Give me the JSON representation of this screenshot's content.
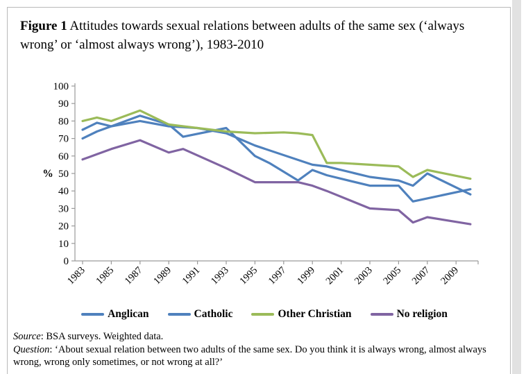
{
  "page": {
    "title_bold": "Figure 1",
    "title_rest": " Attitudes towards sexual relations between adults of the same sex (‘always wrong’ or ‘almost always wrong’), 1983-2010"
  },
  "chart_data": {
    "type": "line",
    "title": "Attitudes towards sexual relations between adults of the same sex (always wrong or almost always wrong), 1983-2010",
    "ylabel": "%",
    "xlabel": "",
    "ylim": [
      0,
      100
    ],
    "ytick_step": 10,
    "yticks": [
      0,
      10,
      20,
      30,
      40,
      50,
      60,
      70,
      80,
      90,
      100
    ],
    "xlim": [
      1983,
      2010
    ],
    "xtick_labels": [
      "1983",
      "1985",
      "1987",
      "1989",
      "1991",
      "1993",
      "1995",
      "1997",
      "1999",
      "2001",
      "2003",
      "2005",
      "2007",
      "2009"
    ],
    "grid": false,
    "legend_position": "bottom",
    "axis_color": "#9a9a9a",
    "series": [
      {
        "name": "Anglican",
        "color": "#4f81bd",
        "points": [
          [
            1983,
            75
          ],
          [
            1984,
            79
          ],
          [
            1985,
            77
          ],
          [
            1987,
            83
          ],
          [
            1989,
            78
          ],
          [
            1990,
            71
          ],
          [
            1993,
            76
          ],
          [
            1995,
            60
          ],
          [
            1996,
            56
          ],
          [
            1998,
            46
          ],
          [
            1999,
            52
          ],
          [
            2000,
            49
          ],
          [
            2001,
            47
          ],
          [
            2003,
            43
          ],
          [
            2005,
            43
          ],
          [
            2006,
            34
          ],
          [
            2010,
            41
          ]
        ]
      },
      {
        "name": "Catholic",
        "color": "#4f81bd",
        "points": [
          [
            1983,
            70
          ],
          [
            1984,
            74
          ],
          [
            1985,
            77
          ],
          [
            1987,
            80
          ],
          [
            1989,
            77
          ],
          [
            1991,
            76
          ],
          [
            1993,
            73
          ],
          [
            1995,
            66
          ],
          [
            1999,
            55
          ],
          [
            2000,
            54
          ],
          [
            2003,
            48
          ],
          [
            2005,
            46
          ],
          [
            2006,
            43
          ],
          [
            2007,
            50
          ],
          [
            2010,
            38
          ]
        ]
      },
      {
        "name": "Other Christian",
        "color": "#9bbb59",
        "points": [
          [
            1983,
            80
          ],
          [
            1984,
            82
          ],
          [
            1985,
            80
          ],
          [
            1987,
            86
          ],
          [
            1989,
            78
          ],
          [
            1991,
            76
          ],
          [
            1993,
            74
          ],
          [
            1995,
            73
          ],
          [
            1997,
            73.5
          ],
          [
            1998,
            73
          ],
          [
            1999,
            72
          ],
          [
            2000,
            56
          ],
          [
            2001,
            56
          ],
          [
            2003,
            55
          ],
          [
            2005,
            54
          ],
          [
            2006,
            48
          ],
          [
            2007,
            52
          ],
          [
            2010,
            47
          ]
        ]
      },
      {
        "name": "No religion",
        "color": "#8064a2",
        "points": [
          [
            1983,
            58
          ],
          [
            1984,
            61
          ],
          [
            1985,
            64
          ],
          [
            1987,
            69
          ],
          [
            1989,
            62
          ],
          [
            1990,
            64
          ],
          [
            1993,
            53
          ],
          [
            1995,
            45
          ],
          [
            1997,
            45
          ],
          [
            1998,
            45
          ],
          [
            1999,
            43
          ],
          [
            2000,
            40
          ],
          [
            2003,
            30
          ],
          [
            2005,
            29
          ],
          [
            2006,
            22
          ],
          [
            2007,
            25
          ],
          [
            2010,
            21
          ]
        ]
      }
    ]
  },
  "footnotes": {
    "source_label": "Source",
    "source_text": ": BSA surveys. Weighted data.",
    "question_label": "Question",
    "question_text": ": ‘About sexual relation between two adults of the same sex. Do you think it is always wrong, almost always wrong, wrong only sometimes, or not wrong at all?’"
  }
}
